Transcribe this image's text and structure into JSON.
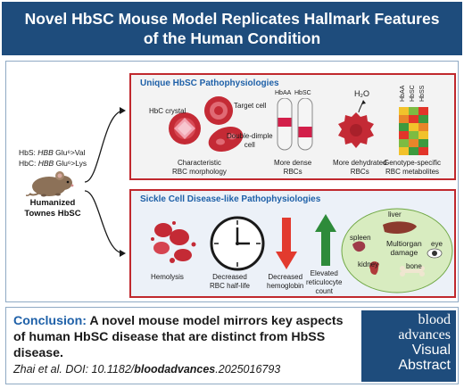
{
  "header": {
    "title_line1": "Novel HbSC Mouse Model Replicates Hallmark Features",
    "title_line2": "of the Human Condition"
  },
  "mouse": {
    "hbs_prefix": "HbS: ",
    "hbs_gene": "HBB",
    "hbs_mutation": " Glu⁶>Val",
    "hbc_prefix": "HbC: ",
    "hbc_gene": "HBB",
    "hbc_mutation": " Glu⁶>Lys",
    "label_line1": "Humanized",
    "label_line2": "Townes HbSC"
  },
  "panel1": {
    "title": "Unique HbSC Pathophysiologies",
    "hbc_crystal": "HbC crystal",
    "target_cell": "Target cell",
    "double_dimple_1": "Double-dimple",
    "double_dimple_2": "cell",
    "morphology_1": "Characteristic",
    "morphology_2": "RBC morphology",
    "tube_hbaa": "HbAA",
    "tube_hbsc": "HbSC",
    "dense_1": "More dense",
    "dense_2": "RBCs",
    "h2o": "H₂O",
    "dehydrated_1": "More dehydrated",
    "dehydrated_2": "RBCs",
    "heat_cols": [
      "HbAA",
      "HbSC",
      "HbSS"
    ],
    "metabolites_1": "Genotype-specific",
    "metabolites_2": "RBC metabolites"
  },
  "panel2": {
    "title": "Sickle Cell Disease-like Pathophysiologies",
    "hemolysis": "Hemolysis",
    "halflife_1": "Decreased",
    "halflife_2": "RBC half-life",
    "hemoglobin_1": "Decreased",
    "hemoglobin_2": "hemoglobin",
    "retic_1": "Elevated",
    "retic_2": "reticulocyte",
    "retic_3": "count",
    "liver": "liver",
    "spleen": "spleen",
    "eye": "eye",
    "multiorgan_1": "Multiorgan",
    "multiorgan_2": "damage",
    "kidney": "kidney",
    "bone": "bone"
  },
  "conclusion": {
    "label": "Conclusion:",
    "text": " A novel mouse model mirrors key aspects of human HbSC disease that are distinct from HbSS disease.",
    "citation_prefix": "Zhai et al. DOI: 10.1182/",
    "citation_bold": "bloodadvances",
    "citation_suffix": ".2025016793"
  },
  "brand": {
    "line1": "blood",
    "line2": "advances",
    "line3": "Visual",
    "line4": "Abstract"
  },
  "colors": {
    "header_bg": "#1e4c7c",
    "panel_border": "#c0282d",
    "title_blue": "#1e60a8",
    "rbc_red": "#c42a35",
    "arrow_green": "#2e8b3a"
  },
  "icons": [
    "mouse-icon",
    "rbc-icon",
    "test-tube-icon",
    "dehydrated-rbc-icon",
    "heatmap-icon",
    "clock-icon",
    "down-arrow-icon",
    "up-arrow-icon",
    "organ-icon"
  ]
}
